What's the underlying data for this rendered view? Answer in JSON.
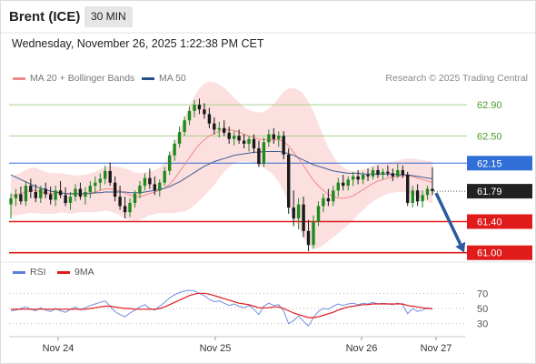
{
  "header": {
    "instrument": "Brent (ICE)",
    "timeframe": "30 MIN",
    "datetime": "Wednesday, November 26, 2025 1:22:38 PM CET"
  },
  "legend": {
    "ma20_label": "MA 20 + Bollinger Bands",
    "ma20_color": "#f08a8a",
    "ma50_label": "MA 50",
    "ma50_color": "#2b4f86",
    "credit": "Research © 2025 Trading Central"
  },
  "rsi_legend": {
    "rsi_label": "RSI",
    "rsi_color": "#5b7fd6",
    "ma9_label": "9MA",
    "ma9_color": "#e01b1b"
  },
  "chart_data": [
    {
      "type": "line",
      "subtype": "candlestick",
      "ylim": [
        60.95,
        63.1
      ],
      "x_ticks": [
        "Nov 24",
        "Nov 25",
        "Nov 26",
        "Nov 27"
      ],
      "last_price": {
        "label": "61.79",
        "value": 61.79,
        "color": "#222222"
      },
      "levels": [
        {
          "label": "62.90",
          "value": 62.9,
          "kind": "target",
          "color": "#a8d08d",
          "text_color": "#4d9a2a"
        },
        {
          "label": "62.50",
          "value": 62.5,
          "kind": "target",
          "color": "#a8d08d",
          "text_color": "#4d9a2a"
        },
        {
          "label": "62.15",
          "value": 62.15,
          "kind": "pivot",
          "color": "#2f6fd6"
        },
        {
          "label": "61.40",
          "value": 61.4,
          "kind": "support",
          "color": "#e01b1b"
        },
        {
          "label": "61.00",
          "value": 61.0,
          "kind": "support",
          "color": "#e01b1b"
        }
      ],
      "arrow": {
        "from": 61.79,
        "to": 61.05,
        "color": "#2b5aa0"
      },
      "candles": [
        [
          61.62,
          61.76,
          61.44,
          61.7
        ],
        [
          61.7,
          61.82,
          61.6,
          61.75
        ],
        [
          61.75,
          61.85,
          61.62,
          61.66
        ],
        [
          61.66,
          61.92,
          61.6,
          61.86
        ],
        [
          61.86,
          61.95,
          61.7,
          61.78
        ],
        [
          61.78,
          61.88,
          61.65,
          61.7
        ],
        [
          61.7,
          61.86,
          61.64,
          61.82
        ],
        [
          61.82,
          61.9,
          61.7,
          61.75
        ],
        [
          61.75,
          61.85,
          61.62,
          61.68
        ],
        [
          61.68,
          61.86,
          61.6,
          61.8
        ],
        [
          61.8,
          61.92,
          61.7,
          61.74
        ],
        [
          61.74,
          61.84,
          61.6,
          61.64
        ],
        [
          61.64,
          61.78,
          61.55,
          61.72
        ],
        [
          61.72,
          61.88,
          61.66,
          61.82
        ],
        [
          61.82,
          61.9,
          61.68,
          61.72
        ],
        [
          61.72,
          61.84,
          61.62,
          61.78
        ],
        [
          61.78,
          61.92,
          61.7,
          61.86
        ],
        [
          61.86,
          61.98,
          61.76,
          61.9
        ],
        [
          61.9,
          62.02,
          61.8,
          61.95
        ],
        [
          61.95,
          62.12,
          61.88,
          62.05
        ],
        [
          62.05,
          62.16,
          61.86,
          61.9
        ],
        [
          61.9,
          61.98,
          61.66,
          61.72
        ],
        [
          61.72,
          61.86,
          61.55,
          61.6
        ],
        [
          61.6,
          61.72,
          61.44,
          61.52
        ],
        [
          61.52,
          61.7,
          61.46,
          61.64
        ],
        [
          61.64,
          61.8,
          61.58,
          61.76
        ],
        [
          61.76,
          61.92,
          61.7,
          61.86
        ],
        [
          61.86,
          62.02,
          61.8,
          61.96
        ],
        [
          61.96,
          62.08,
          61.82,
          61.88
        ],
        [
          61.88,
          61.98,
          61.74,
          61.8
        ],
        [
          61.8,
          61.94,
          61.72,
          61.9
        ],
        [
          61.9,
          62.1,
          61.86,
          62.05
        ],
        [
          62.05,
          62.3,
          62.0,
          62.25
        ],
        [
          62.25,
          62.45,
          62.18,
          62.4
        ],
        [
          62.4,
          62.62,
          62.35,
          62.55
        ],
        [
          62.55,
          62.75,
          62.5,
          62.7
        ],
        [
          62.7,
          62.88,
          62.64,
          62.82
        ],
        [
          62.82,
          62.96,
          62.74,
          62.9
        ],
        [
          62.9,
          62.98,
          62.78,
          62.84
        ],
        [
          62.84,
          62.92,
          62.72,
          62.78
        ],
        [
          62.78,
          62.86,
          62.6,
          62.66
        ],
        [
          62.66,
          62.74,
          62.52,
          62.58
        ],
        [
          62.58,
          62.68,
          62.48,
          62.6
        ],
        [
          62.6,
          62.7,
          62.5,
          62.54
        ],
        [
          62.54,
          62.62,
          62.4,
          62.46
        ],
        [
          62.46,
          62.56,
          62.38,
          62.5
        ],
        [
          62.5,
          62.58,
          62.4,
          62.44
        ],
        [
          62.44,
          62.52,
          62.34,
          62.4
        ],
        [
          62.4,
          62.5,
          62.3,
          62.46
        ],
        [
          62.46,
          62.52,
          62.28,
          62.34
        ],
        [
          62.34,
          62.44,
          62.1,
          62.14
        ],
        [
          62.14,
          62.48,
          62.1,
          62.42
        ],
        [
          62.42,
          62.58,
          62.36,
          62.52
        ],
        [
          62.52,
          62.6,
          62.4,
          62.46
        ],
        [
          62.46,
          62.56,
          62.36,
          62.5
        ],
        [
          62.5,
          62.56,
          62.2,
          62.26
        ],
        [
          62.26,
          62.34,
          61.5,
          61.58
        ],
        [
          61.58,
          61.8,
          61.34,
          61.44
        ],
        [
          61.44,
          61.7,
          61.3,
          61.62
        ],
        [
          61.62,
          61.72,
          61.2,
          61.28
        ],
        [
          61.28,
          61.42,
          61.02,
          61.1
        ],
        [
          61.1,
          61.48,
          61.05,
          61.4
        ],
        [
          61.4,
          61.66,
          61.34,
          61.6
        ],
        [
          61.6,
          61.76,
          61.52,
          61.7
        ],
        [
          61.7,
          61.82,
          61.6,
          61.66
        ],
        [
          61.66,
          61.86,
          61.6,
          61.8
        ],
        [
          61.8,
          61.96,
          61.72,
          61.9
        ],
        [
          61.9,
          62.0,
          61.8,
          61.86
        ],
        [
          61.86,
          61.98,
          61.8,
          61.94
        ],
        [
          61.94,
          62.04,
          61.86,
          61.98
        ],
        [
          61.98,
          62.06,
          61.88,
          61.94
        ],
        [
          61.94,
          62.04,
          61.88,
          62.0
        ],
        [
          62.0,
          62.08,
          61.92,
          61.98
        ],
        [
          61.98,
          62.1,
          61.94,
          62.06
        ],
        [
          62.06,
          62.12,
          61.96,
          62.0
        ],
        [
          62.0,
          62.08,
          61.94,
          62.04
        ],
        [
          62.04,
          62.12,
          61.98,
          62.02
        ],
        [
          62.02,
          62.08,
          61.92,
          61.98
        ],
        [
          61.98,
          62.14,
          61.96,
          62.06
        ],
        [
          62.06,
          62.12,
          61.96,
          62.0
        ],
        [
          62.0,
          62.04,
          61.6,
          61.64
        ],
        [
          61.64,
          61.86,
          61.58,
          61.8
        ],
        [
          61.8,
          61.88,
          61.6,
          61.66
        ],
        [
          61.66,
          61.8,
          61.58,
          61.74
        ],
        [
          61.74,
          61.86,
          61.68,
          61.82
        ],
        [
          61.82,
          62.1,
          61.74,
          61.79
        ]
      ],
      "ma20": [
        61.73,
        61.74,
        61.76,
        61.78,
        61.8,
        61.8,
        61.78,
        61.77,
        61.76,
        61.76,
        61.77,
        61.76,
        61.75,
        61.75,
        61.76,
        61.76,
        61.77,
        61.78,
        61.8,
        61.82,
        61.82,
        61.81,
        61.79,
        61.76,
        61.74,
        61.72,
        61.72,
        61.74,
        61.76,
        61.78,
        61.8,
        61.83,
        61.88,
        61.95,
        62.04,
        62.13,
        62.22,
        62.31,
        62.39,
        62.45,
        62.5,
        62.53,
        62.56,
        62.58,
        62.58,
        62.57,
        62.55,
        62.52,
        62.5,
        62.48,
        62.46,
        62.45,
        62.45,
        62.45,
        62.45,
        62.43,
        62.37,
        62.29,
        62.21,
        62.12,
        62.02,
        61.93,
        61.86,
        61.8,
        61.75,
        61.72,
        61.7,
        61.7,
        61.71,
        61.73,
        61.77,
        61.81,
        61.85,
        61.89,
        61.92,
        61.94,
        61.96,
        61.97,
        61.98,
        61.99,
        61.99,
        61.98,
        61.96,
        61.94,
        61.92,
        61.9
      ],
      "ma50": [
        62.0,
        61.97,
        61.94,
        61.91,
        61.88,
        61.85,
        61.83,
        61.81,
        61.79,
        61.78,
        61.77,
        61.76,
        61.76,
        61.76,
        61.76,
        61.76,
        61.76,
        61.77,
        61.77,
        61.78,
        61.78,
        61.78,
        61.78,
        61.78,
        61.77,
        61.77,
        61.77,
        61.78,
        61.79,
        61.8,
        61.81,
        61.83,
        61.85,
        61.88,
        61.91,
        61.95,
        61.99,
        62.03,
        62.07,
        62.11,
        62.14,
        62.17,
        62.19,
        62.21,
        62.23,
        62.25,
        62.26,
        62.27,
        62.28,
        62.29,
        62.29,
        62.3,
        62.3,
        62.3,
        62.3,
        62.29,
        62.27,
        62.25,
        62.22,
        62.19,
        62.16,
        62.13,
        62.11,
        62.09,
        62.07,
        62.05,
        62.04,
        62.03,
        62.02,
        62.02,
        62.02,
        62.01,
        62.01,
        62.01,
        62.01,
        62.01,
        62.01,
        62.01,
        62.0,
        62.0,
        62.0,
        61.99,
        61.98,
        61.97,
        61.96,
        61.95
      ],
      "bb_width": [
        0.25,
        0.26,
        0.27,
        0.28,
        0.29,
        0.29,
        0.28,
        0.27,
        0.26,
        0.26,
        0.25,
        0.25,
        0.25,
        0.24,
        0.24,
        0.24,
        0.25,
        0.26,
        0.27,
        0.28,
        0.29,
        0.3,
        0.31,
        0.32,
        0.32,
        0.31,
        0.3,
        0.29,
        0.28,
        0.28,
        0.29,
        0.32,
        0.37,
        0.44,
        0.52,
        0.6,
        0.66,
        0.7,
        0.72,
        0.72,
        0.7,
        0.66,
        0.6,
        0.54,
        0.48,
        0.42,
        0.38,
        0.35,
        0.33,
        0.33,
        0.34,
        0.36,
        0.4,
        0.46,
        0.54,
        0.64,
        0.74,
        0.82,
        0.88,
        0.92,
        0.92,
        0.88,
        0.8,
        0.7,
        0.6,
        0.52,
        0.45,
        0.4,
        0.35,
        0.31,
        0.28,
        0.26,
        0.24,
        0.23,
        0.22,
        0.21,
        0.2,
        0.2,
        0.2,
        0.21,
        0.22,
        0.23,
        0.24,
        0.25,
        0.26,
        0.27
      ]
    },
    {
      "type": "line",
      "title": "RSI",
      "ylim": [
        20,
        80
      ],
      "y_ticks": [
        "70",
        "50",
        "30"
      ],
      "y_tick_values": [
        70,
        50,
        30
      ],
      "series": [
        {
          "name": "RSI",
          "values": [
            47,
            48,
            50,
            52,
            49,
            47,
            51,
            48,
            46,
            50,
            47,
            45,
            49,
            52,
            48,
            51,
            54,
            56,
            58,
            60,
            53,
            46,
            42,
            39,
            44,
            48,
            52,
            55,
            50,
            48,
            53,
            58,
            64,
            68,
            71,
            73,
            74,
            73,
            70,
            67,
            62,
            59,
            60,
            57,
            54,
            56,
            53,
            51,
            54,
            49,
            42,
            53,
            57,
            54,
            55,
            47,
            30,
            34,
            40,
            33,
            27,
            38,
            46,
            50,
            49,
            53,
            56,
            54,
            56,
            57,
            55,
            57,
            56,
            58,
            56,
            57,
            56,
            55,
            57,
            55,
            43,
            50,
            46,
            48,
            51,
            49
          ]
        },
        {
          "name": "9MA",
          "values": [
            49,
            49,
            49,
            49,
            49,
            49,
            49,
            49,
            49,
            49,
            49,
            49,
            49,
            49,
            49,
            49,
            50,
            51,
            52,
            53,
            53,
            52,
            51,
            50,
            50,
            49,
            49,
            49,
            49,
            49,
            50,
            52,
            55,
            58,
            61,
            64,
            67,
            69,
            70,
            70,
            69,
            67,
            65,
            63,
            61,
            59,
            57,
            56,
            55,
            53,
            51,
            51,
            51,
            52,
            52,
            50,
            47,
            44,
            42,
            40,
            38,
            38,
            39,
            41,
            43,
            45,
            48,
            50,
            52,
            53,
            54,
            55,
            55,
            56,
            56,
            56,
            56,
            56,
            56,
            56,
            54,
            53,
            52,
            51,
            50,
            50
          ]
        }
      ]
    }
  ]
}
